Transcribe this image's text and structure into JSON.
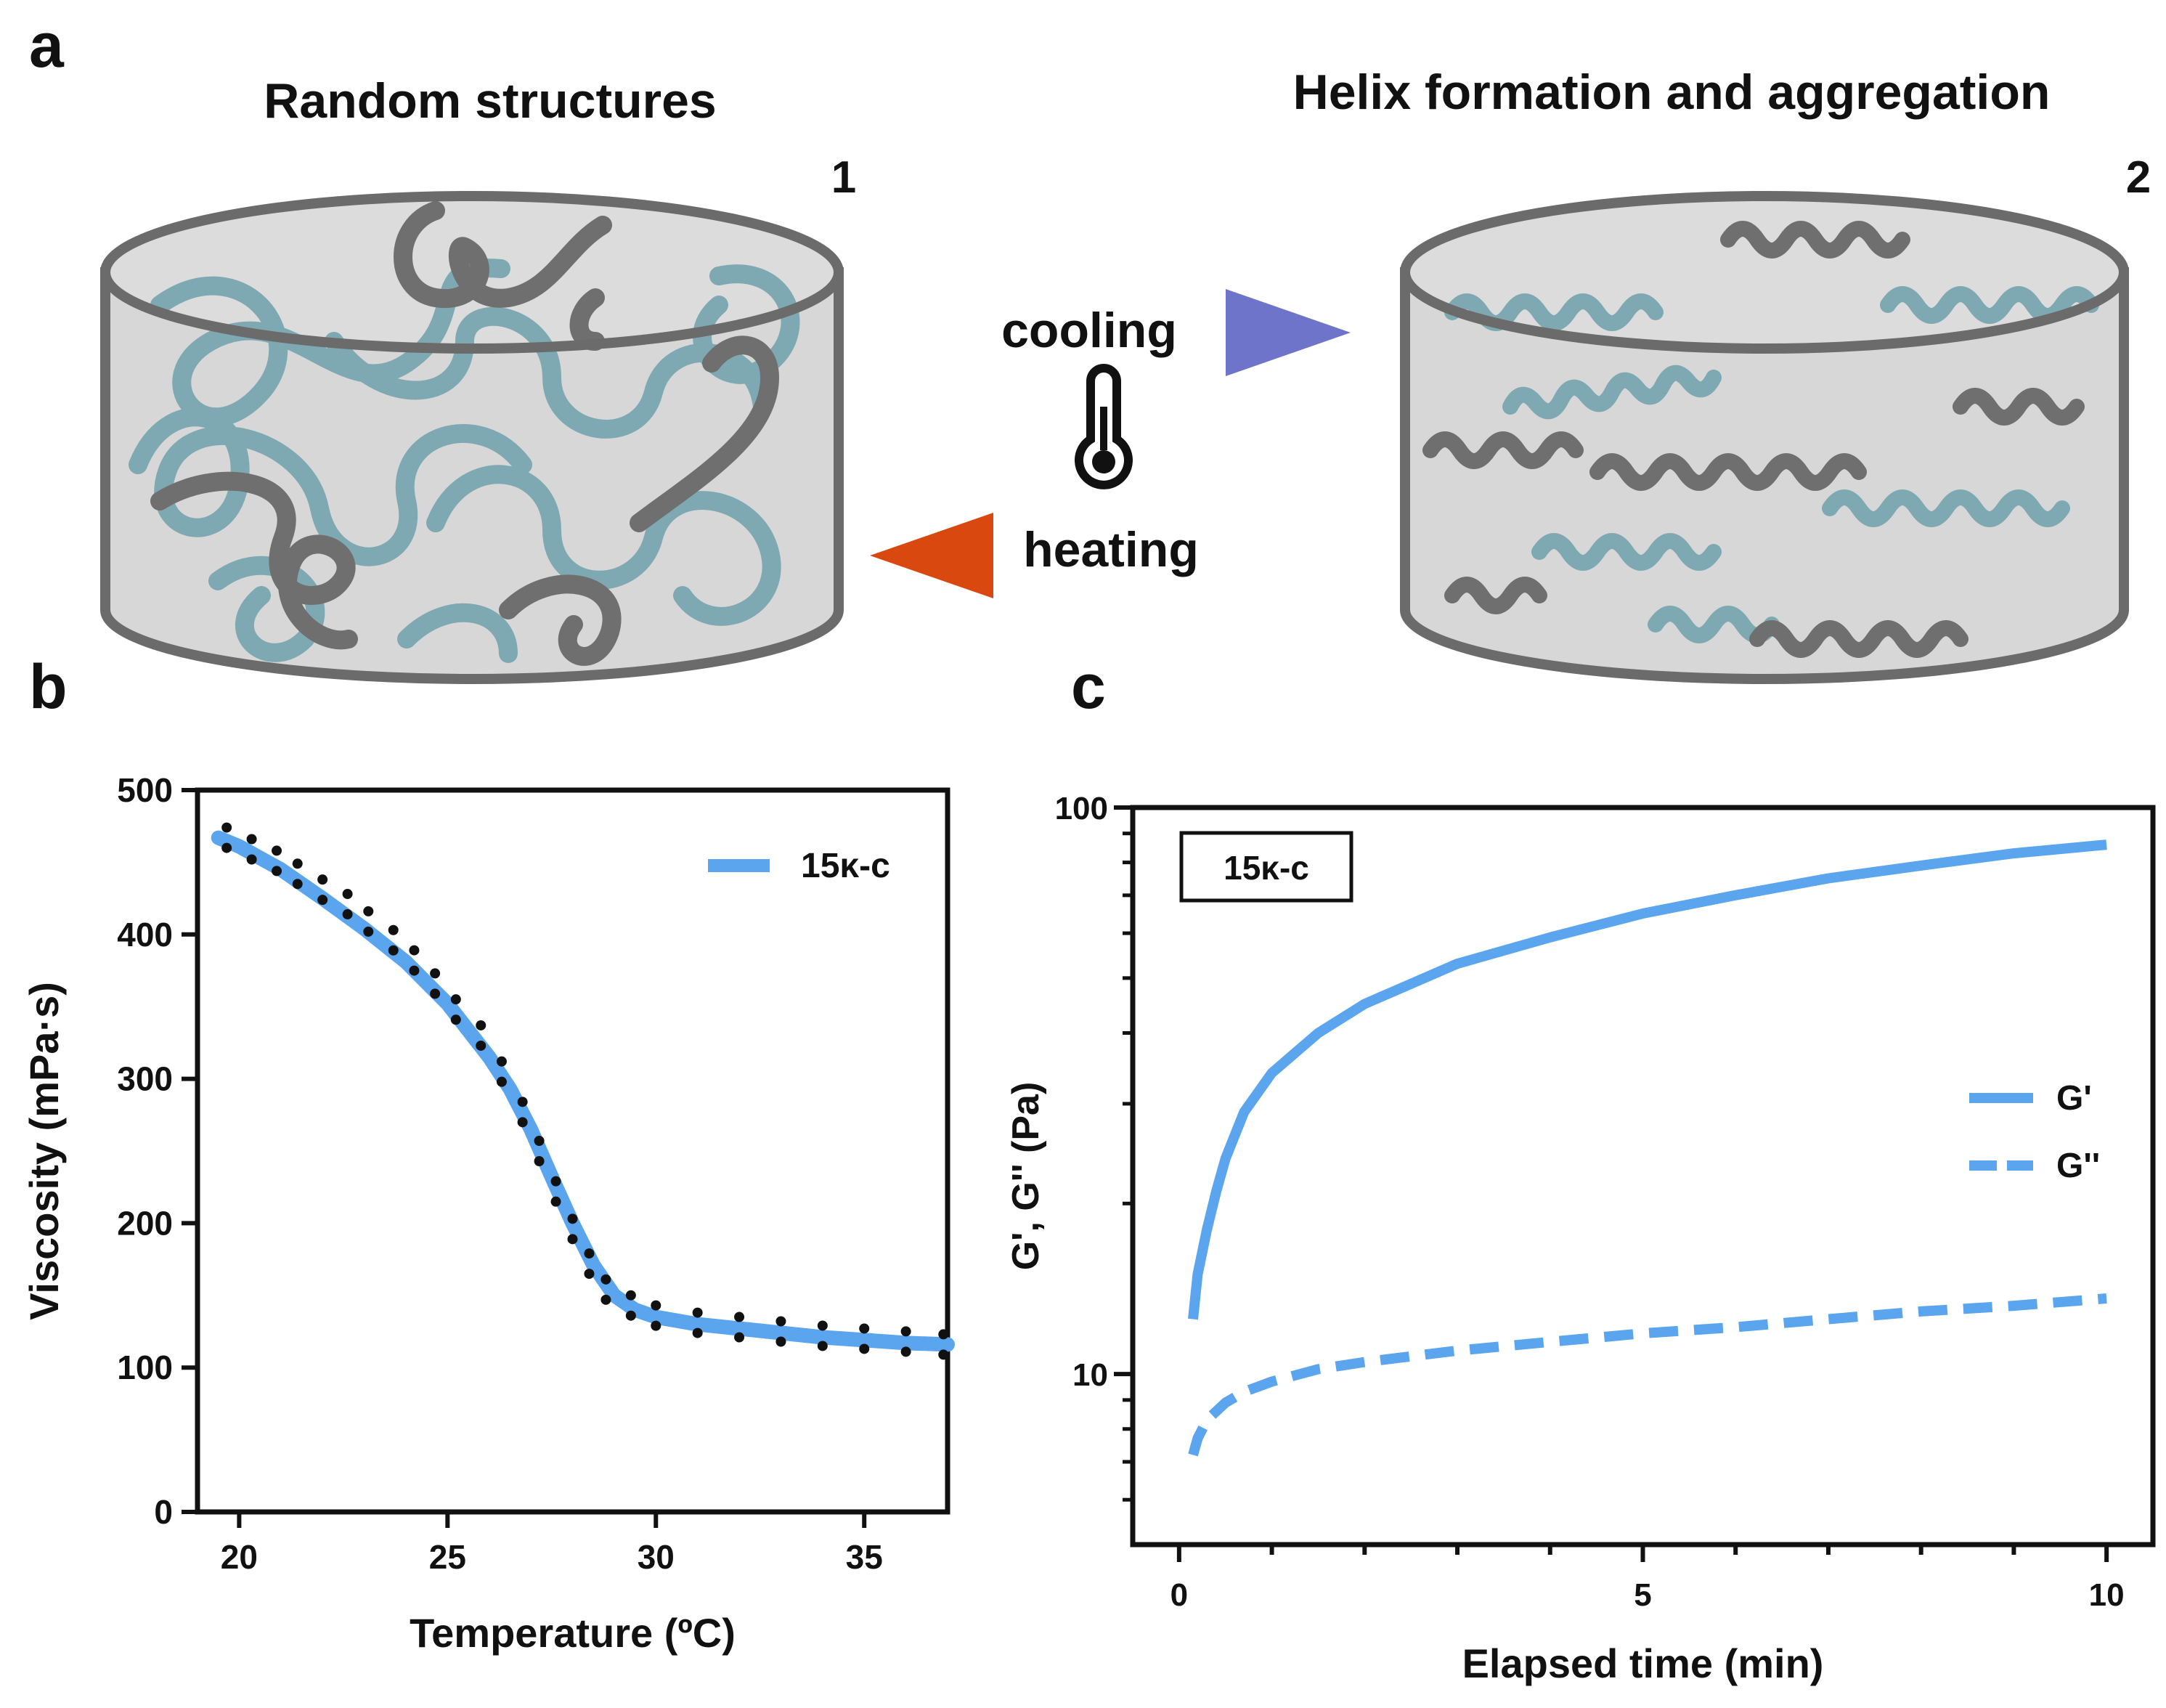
{
  "panel_a": {
    "letter": "a",
    "left_title": "Random structures",
    "right_title": "Helix formation and aggregation",
    "left_number": "1",
    "right_number": "2",
    "cooling_label": "cooling",
    "heating_label": "heating",
    "icons": {
      "thermometer": "thermometer-icon",
      "cooling_arrow": "triangle-right",
      "heating_arrow": "triangle-left"
    },
    "colors": {
      "polymer_teal": "#7fa9b2",
      "polymer_gray": "#6f6f6f",
      "container_fill": "#d7d7d7",
      "container_edge": "#6b6b6b",
      "cooling_arrow": "#6e74c9",
      "heating_arrow": "#d9480f"
    }
  },
  "chart_data": [
    {
      "panel": "b",
      "type": "line",
      "title": "",
      "xlabel": "Temperature (ºC)",
      "ylabel": "Viscosity (mPa·s)",
      "xlim": [
        19,
        37
      ],
      "ylim": [
        0,
        500
      ],
      "xticks": [
        20,
        25,
        30,
        35
      ],
      "yticks": [
        0,
        100,
        200,
        300,
        400,
        500
      ],
      "legend": {
        "position": "top-right",
        "entries": [
          "15κ-c"
        ]
      },
      "colors": {
        "line": "#5aa5ee",
        "points": "#111111"
      },
      "series": [
        {
          "name": "15κ-c",
          "x": [
            19.5,
            20,
            21,
            22,
            23,
            24,
            25,
            26,
            26.5,
            27,
            27.5,
            28,
            28.5,
            29,
            29.5,
            30,
            31,
            32,
            33,
            34,
            35,
            36,
            37
          ],
          "y": [
            467,
            461,
            445,
            425,
            404,
            381,
            352,
            315,
            293,
            265,
            232,
            200,
            171,
            150,
            140,
            135,
            130,
            127,
            124,
            121,
            119,
            117,
            116
          ]
        }
      ],
      "points": {
        "x": [
          19.7,
          20.3,
          20.9,
          21.4,
          22,
          22.6,
          23.1,
          23.7,
          24.2,
          24.7,
          25.2,
          25.8,
          26.3,
          26.8,
          27.2,
          27.6,
          28,
          28.4,
          28.8,
          29.4,
          30,
          31,
          32,
          33,
          34,
          35,
          36,
          36.9
        ],
        "y": [
          467,
          459,
          451,
          442,
          431,
          421,
          409,
          396,
          382,
          366,
          348,
          330,
          305,
          277,
          250,
          222,
          196,
          172,
          154,
          143,
          136,
          131,
          128,
          125,
          122,
          120,
          118,
          116
        ]
      }
    },
    {
      "panel": "c",
      "type": "line",
      "title": "",
      "xlabel": "Elapsed time (min)",
      "ylabel": "G', G'' (Pa)",
      "xlim": [
        -0.5,
        10.5
      ],
      "ylim": [
        5,
        100
      ],
      "yscale": "log",
      "xticks": [
        0,
        5,
        10
      ],
      "yticks": [
        10,
        100
      ],
      "box_label": "15κ-c",
      "legend": {
        "position": "middle-right",
        "entries": [
          "G'",
          "G''"
        ]
      },
      "colors": {
        "line": "#5aa5ee"
      },
      "series": [
        {
          "name": "G'",
          "style": "solid",
          "x": [
            0.15,
            0.2,
            0.3,
            0.4,
            0.5,
            0.7,
            1,
            1.5,
            2,
            3,
            4,
            5,
            6,
            7,
            8,
            9,
            10
          ],
          "y": [
            12.5,
            15,
            18,
            21,
            24,
            29,
            34,
            40,
            45,
            53,
            59,
            65,
            70,
            75,
            79,
            83,
            86
          ]
        },
        {
          "name": "G''",
          "style": "dashed",
          "x": [
            0.15,
            0.2,
            0.3,
            0.5,
            0.7,
            1,
            1.5,
            2,
            3,
            4,
            5,
            6,
            7,
            8,
            9,
            10
          ],
          "y": [
            7.2,
            7.7,
            8.3,
            8.9,
            9.3,
            9.7,
            10.2,
            10.5,
            11,
            11.4,
            11.8,
            12.1,
            12.5,
            12.9,
            13.2,
            13.6
          ]
        }
      ]
    }
  ]
}
